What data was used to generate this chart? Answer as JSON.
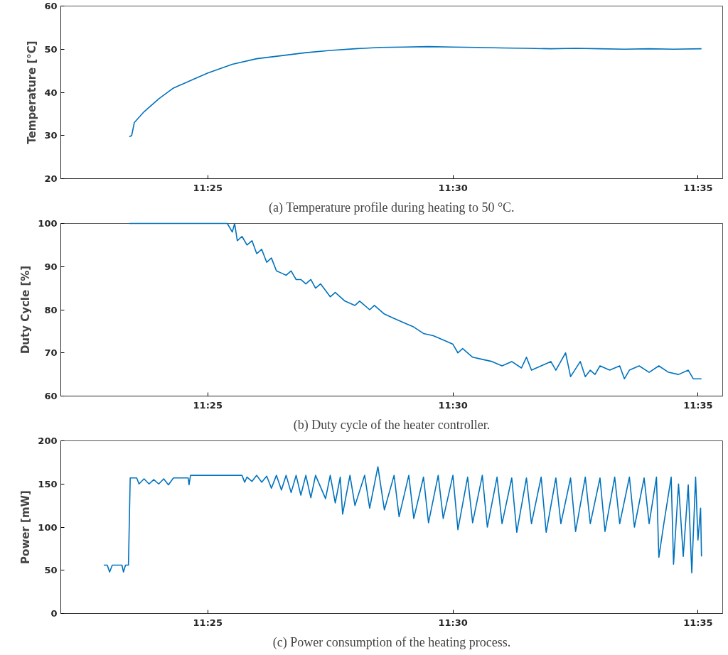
{
  "chart_data": [
    {
      "type": "line",
      "title": "(a) Temperature profile during heating to 50 °C.",
      "ylabel": "Temperature [°C]",
      "x": [
        11.39,
        11.3908,
        11.3917,
        11.395,
        11.4,
        11.405,
        11.4117,
        11.4167,
        11.425,
        11.4333,
        11.4417,
        11.45,
        11.4583,
        11.4667,
        11.475,
        11.4833,
        11.4917,
        11.5,
        11.5083,
        11.5167,
        11.525,
        11.5333,
        11.5417,
        11.55,
        11.5583,
        11.5667,
        11.575,
        11.5845
      ],
      "series": [
        {
          "color": "#0072bd",
          "values": [
            29.7,
            30,
            33,
            35.5,
            38.5,
            41,
            43,
            44.5,
            46.5,
            47.8,
            48.5,
            49.2,
            49.7,
            50.1,
            50.4,
            50.5,
            50.6,
            50.5,
            50.4,
            50.3,
            50.2,
            50.1,
            50.2,
            50.1,
            50,
            50.1,
            50,
            50.1
          ]
        }
      ],
      "xlim": [
        11.3667,
        11.5917
      ],
      "xticks": [
        {
          "value": 11.416667,
          "label": "11:25"
        },
        {
          "value": 11.5,
          "label": "11:30"
        },
        {
          "value": 11.583333,
          "label": "11:35"
        }
      ],
      "ylim": [
        20,
        60
      ],
      "yticks": [
        20,
        30,
        40,
        50,
        60
      ],
      "grid": false
    },
    {
      "type": "line",
      "title": "(b) Duty cycle of the heater controller.",
      "ylabel": "Duty Cycle [%]",
      "x": [
        11.39,
        11.4233,
        11.425,
        11.4258,
        11.4267,
        11.4283,
        11.43,
        11.4317,
        11.4333,
        11.435,
        11.4367,
        11.4383,
        11.44,
        11.4417,
        11.4433,
        11.445,
        11.4467,
        11.4483,
        11.45,
        11.4517,
        11.4533,
        11.455,
        11.4583,
        11.46,
        11.4633,
        11.4667,
        11.4683,
        11.4717,
        11.4733,
        11.4767,
        11.48,
        11.4833,
        11.4867,
        11.49,
        11.4933,
        11.4967,
        11.5,
        11.5017,
        11.5033,
        11.5067,
        11.51,
        11.5133,
        11.5167,
        11.52,
        11.5233,
        11.525,
        11.5267,
        11.53,
        11.5333,
        11.535,
        11.5383,
        11.54,
        11.5433,
        11.545,
        11.5467,
        11.5483,
        11.55,
        11.5533,
        11.5567,
        11.5583,
        11.56,
        11.5633,
        11.5667,
        11.57,
        11.5733,
        11.5767,
        11.58,
        11.5817,
        11.5845
      ],
      "series": [
        {
          "color": "#0072bd",
          "values": [
            100,
            100,
            98,
            100,
            96,
            97,
            95,
            96,
            93,
            94,
            91,
            92,
            89,
            88.5,
            88,
            89,
            87,
            87,
            86,
            87,
            85,
            86,
            83,
            84,
            82,
            81,
            82,
            80,
            81,
            79,
            78,
            77,
            76,
            74.5,
            74,
            73,
            72,
            70,
            71,
            69,
            68.5,
            68,
            67,
            68,
            66.5,
            69,
            66,
            67,
            68,
            66,
            70,
            64.5,
            68,
            64.5,
            66,
            65,
            67,
            66,
            67,
            64,
            66,
            67,
            65.5,
            67,
            65.5,
            65,
            66,
            64,
            64
          ]
        }
      ],
      "xlim": [
        11.3667,
        11.5917
      ],
      "xticks": [
        {
          "value": 11.416667,
          "label": "11:25"
        },
        {
          "value": 11.5,
          "label": "11:30"
        },
        {
          "value": 11.583333,
          "label": "11:35"
        }
      ],
      "ylim": [
        60,
        100
      ],
      "yticks": [
        60,
        70,
        80,
        90,
        100
      ],
      "grid": false
    },
    {
      "type": "line",
      "title": "(c) Power consumption of the heating process.",
      "ylabel": "Power [mW]",
      "x": [
        11.3813,
        11.3825,
        11.3833,
        11.3842,
        11.3875,
        11.388,
        11.3887,
        11.3897,
        11.3903,
        11.3925,
        11.3933,
        11.395,
        11.3967,
        11.3983,
        11.4,
        11.4017,
        11.4033,
        11.405,
        11.41,
        11.4103,
        11.4108,
        11.4283,
        11.4292,
        11.43,
        11.4317,
        11.4333,
        11.435,
        11.4367,
        11.4383,
        11.44,
        11.4417,
        11.4433,
        11.445,
        11.4467,
        11.4483,
        11.45,
        11.4517,
        11.4533,
        11.4567,
        11.4583,
        11.46,
        11.4617,
        11.4625,
        11.465,
        11.4667,
        11.47,
        11.4717,
        11.4745,
        11.4767,
        11.48,
        11.4817,
        11.485,
        11.4867,
        11.49,
        11.4917,
        11.495,
        11.4967,
        11.5,
        11.5017,
        11.505,
        11.5067,
        11.51,
        11.5117,
        11.515,
        11.5167,
        11.52,
        11.5217,
        11.525,
        11.5267,
        11.53,
        11.5317,
        11.535,
        11.5367,
        11.54,
        11.5417,
        11.545,
        11.5467,
        11.55,
        11.5517,
        11.555,
        11.5567,
        11.56,
        11.5617,
        11.565,
        11.5667,
        11.5692,
        11.57,
        11.5717,
        11.5742,
        11.575,
        11.5767,
        11.5783,
        11.58,
        11.5812,
        11.5825,
        11.5833,
        11.5842,
        11.5845
      ],
      "series": [
        {
          "color": "#0072bd",
          "values": [
            56,
            56,
            48,
            56,
            56,
            48,
            56,
            56,
            157,
            157,
            150,
            156,
            150,
            155,
            150,
            156,
            149,
            157,
            157,
            149,
            160,
            160,
            152,
            158,
            153,
            160,
            152,
            159,
            145,
            160,
            143,
            160,
            140,
            160,
            137,
            160,
            134,
            160,
            133,
            160,
            128,
            158,
            115,
            160,
            125,
            160,
            122,
            170,
            120,
            160,
            112,
            160,
            110,
            158,
            105,
            160,
            110,
            160,
            97,
            158,
            105,
            160,
            100,
            158,
            104,
            157,
            94,
            157,
            104,
            158,
            94,
            157,
            104,
            157,
            95,
            158,
            104,
            157,
            95,
            158,
            104,
            158,
            100,
            157,
            104,
            158,
            65,
            104,
            158,
            57,
            150,
            66,
            149,
            47,
            158,
            85,
            122,
            66
          ]
        }
      ],
      "xlim": [
        11.3667,
        11.5917
      ],
      "xticks": [
        {
          "value": 11.416667,
          "label": "11:25"
        },
        {
          "value": 11.5,
          "label": "11:30"
        },
        {
          "value": 11.583333,
          "label": "11:35"
        }
      ],
      "ylim": [
        0,
        200
      ],
      "yticks": [
        0,
        50,
        100,
        150,
        200
      ],
      "grid": false
    }
  ]
}
